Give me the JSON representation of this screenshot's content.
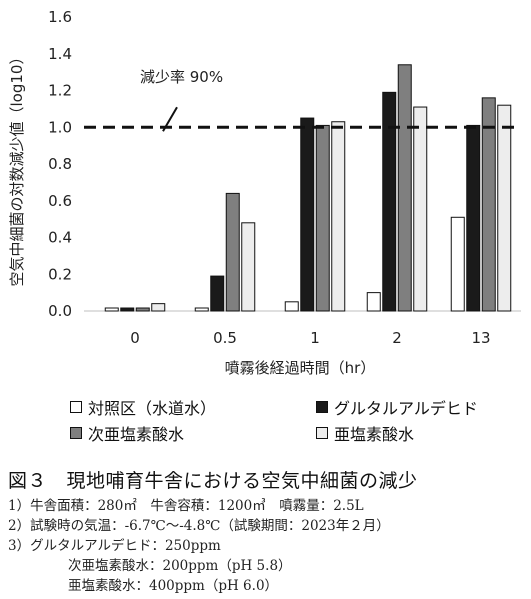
{
  "chart_data": {
    "type": "bar",
    "categories": [
      "0",
      "0.5",
      "1",
      "2",
      "13"
    ],
    "ylabel": "空気中細菌の対数減少値（log10）",
    "xlabel": "噴霧後経過時間（hr）",
    "ylim": [
      0,
      1.6
    ],
    "yticks": [
      "0.0",
      "0.2",
      "0.4",
      "0.6",
      "0.8",
      "1.0",
      "1.2",
      "1.4",
      "1.6"
    ],
    "series": [
      {
        "name": "対照区（水道水）",
        "color": "#ffffff",
        "values": [
          0.01,
          0.0,
          0.05,
          0.1,
          0.51
        ]
      },
      {
        "name": "グルタルアルデヒド",
        "color": "#1a1a1a",
        "values": [
          0.01,
          0.19,
          1.05,
          1.19,
          1.01
        ]
      },
      {
        "name": "次亜塩素酸水",
        "color": "#7f7f7f",
        "values": [
          0.0,
          0.64,
          1.01,
          1.34,
          1.16
        ]
      },
      {
        "name": "亜塩素酸水",
        "color": "#ededed",
        "values": [
          0.04,
          0.48,
          1.03,
          1.11,
          1.12
        ]
      }
    ],
    "reference_line": {
      "value": 1.0,
      "style": "dashed",
      "label": "減少率 90%"
    }
  },
  "figure": {
    "title": "図３　現地哺育牛舎における空気中細菌の減少",
    "notes": [
      "1）牛舎面積：280㎡　牛舎容積：1200㎥　噴霧量：2.5L",
      "2）試験時の気温：-6.7℃～-4.8℃（試験期間：2023年２月）",
      "3）グルタルアルデヒド：250ppm",
      "次亜塩素酸水：200ppm（pH 5.8）",
      "亜塩素酸水：400ppm（pH 6.0）"
    ]
  }
}
